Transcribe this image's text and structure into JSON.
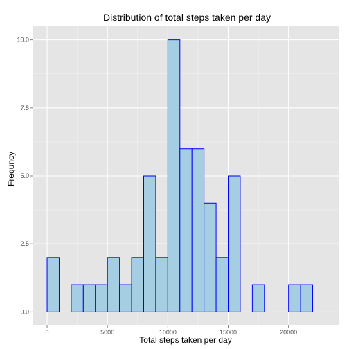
{
  "chart_data": {
    "type": "bar",
    "title": "Distribution of total steps taken per day",
    "xlabel": "Total steps taken per day",
    "ylabel": "Frequncy",
    "x_ticks": [
      "0",
      "5000",
      "10000",
      "15000",
      "20000"
    ],
    "y_ticks": [
      "0.0",
      "2.5",
      "5.0",
      "7.5",
      "10.0"
    ],
    "bin_width": 1000,
    "bins": [
      {
        "start": 0,
        "count": 2
      },
      {
        "start": 1000,
        "count": 0
      },
      {
        "start": 2000,
        "count": 1
      },
      {
        "start": 3000,
        "count": 1
      },
      {
        "start": 4000,
        "count": 1
      },
      {
        "start": 5000,
        "count": 2
      },
      {
        "start": 6000,
        "count": 1
      },
      {
        "start": 7000,
        "count": 2
      },
      {
        "start": 8000,
        "count": 5
      },
      {
        "start": 9000,
        "count": 2
      },
      {
        "start": 10000,
        "count": 10
      },
      {
        "start": 11000,
        "count": 6
      },
      {
        "start": 12000,
        "count": 6
      },
      {
        "start": 13000,
        "count": 4
      },
      {
        "start": 14000,
        "count": 2
      },
      {
        "start": 15000,
        "count": 5
      },
      {
        "start": 16000,
        "count": 0
      },
      {
        "start": 17000,
        "count": 1
      },
      {
        "start": 18000,
        "count": 0
      },
      {
        "start": 19000,
        "count": 0
      },
      {
        "start": 20000,
        "count": 1
      },
      {
        "start": 21000,
        "count": 1
      },
      {
        "start": 22000,
        "count": 0
      }
    ],
    "xlim": [
      -1150,
      24150
    ],
    "ylim": [
      -0.5,
      10.5
    ],
    "grid": true,
    "colors": {
      "panel_background": "#e5e5e5",
      "grid": "#ffffff",
      "bar_fill": "#a6cee3",
      "bar_stroke": "#0000ff"
    }
  }
}
